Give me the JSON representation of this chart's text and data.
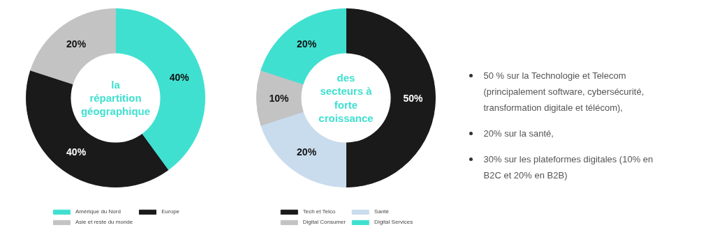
{
  "chart_data": [
    {
      "type": "donut",
      "title": "la répartition géographique",
      "categories": [
        "Amérique du Nord",
        "Europe",
        "Asie et reste du monde"
      ],
      "values": [
        40,
        40,
        20
      ],
      "colors": [
        "#40e0d0",
        "#1a1a1a",
        "#c3c3c3"
      ],
      "value_labels": [
        "40%",
        "40%",
        "20%"
      ],
      "legend": "bottom"
    },
    {
      "type": "donut",
      "title": "des secteurs à forte croissance",
      "categories": [
        "Tech et Telco",
        "Santé",
        "Digital Consumer",
        "Digital Services"
      ],
      "values": [
        50,
        20,
        10,
        20
      ],
      "colors": [
        "#1a1a1a",
        "#c9dced",
        "#c3c3c3",
        "#40e0d0"
      ],
      "value_labels": [
        "50%",
        "20%",
        "10%",
        "20%"
      ],
      "legend": "bottom"
    },
    {
      "type": "other",
      "annotations": [
        "50 % sur la Technologie et Telecom (principalement software, cybersécurité, transformation digitale et télécom),",
        "20% sur la santé,",
        "30% sur les plateformes digitales (10% en B2C et 20% en B2B)"
      ]
    }
  ]
}
